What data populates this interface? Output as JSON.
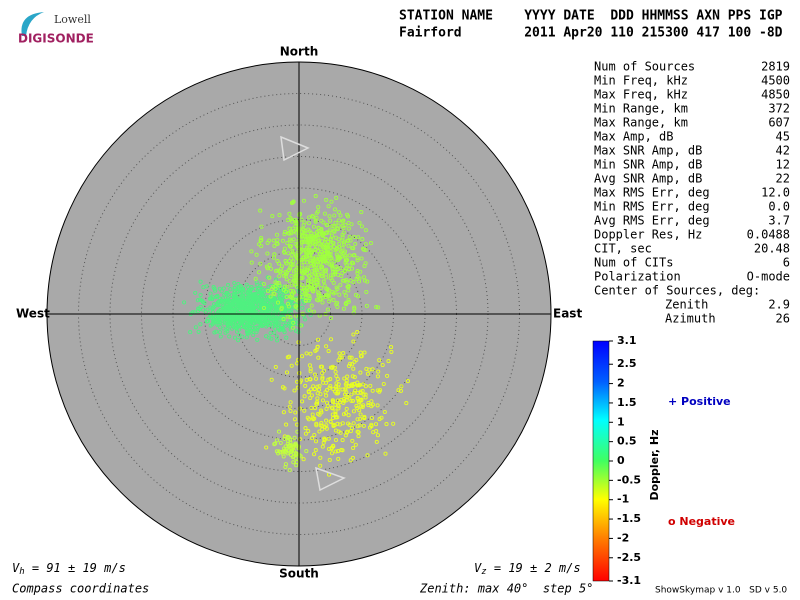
{
  "logo": {
    "top": "Lowell",
    "bottom": "DIGISONDE"
  },
  "header": {
    "line1": "STATION NAME    YYYY DATE  DDD HHMMSS AXN PPS IGP",
    "line2": "Fairford        2011 Apr20 110 215300 417 100 -8D"
  },
  "directions": {
    "north": "North",
    "south": "South",
    "east": "East",
    "west": "West"
  },
  "stats": {
    "rows": [
      [
        "Num of Sources",
        "2819"
      ],
      [
        "Min Freq, kHz",
        "4500"
      ],
      [
        "Max Freq, kHz",
        "4850"
      ],
      [
        "Min Range, km",
        "372"
      ],
      [
        "Max Range, km",
        "607"
      ],
      [
        "Max Amp, dB",
        "45"
      ],
      [
        "Max SNR Amp, dB",
        "42"
      ],
      [
        "Min SNR Amp, dB",
        "12"
      ],
      [
        "Avg SNR Amp, dB",
        "22"
      ],
      [
        "Max RMS Err, deg",
        "12.0"
      ],
      [
        "Min RMS Err, deg",
        "0.0"
      ],
      [
        "Avg RMS Err, deg",
        "3.7"
      ],
      [
        "Doppler Res, Hz",
        "0.0488"
      ],
      [
        "CIT, sec",
        "20.48"
      ],
      [
        "Num of CITs",
        "6"
      ],
      [
        "Polarization",
        "O-mode"
      ]
    ],
    "center_title": "Center of Sources, deg:",
    "center_rows": [
      [
        "Zenith",
        "2.9"
      ],
      [
        "Azimuth",
        "26"
      ]
    ]
  },
  "colorbar": {
    "title": "Doppler, Hz",
    "ticks": [
      3.1,
      2.5,
      2,
      1.5,
      1,
      0.5,
      0,
      -0.5,
      -1,
      -1.5,
      -2,
      -2.5,
      -3.1
    ]
  },
  "legend": {
    "positive": "+ Positive",
    "negative": "o Negative"
  },
  "footer": {
    "vh_symbol": "V",
    "vh_sub": "h",
    "vh_text": " = 91 ± 19 m/s",
    "vz_symbol": "V",
    "vz_sub": "z",
    "vz_text": " = 19 ± 2 m/s",
    "coords": "Compass coordinates",
    "zenith": "Zenith: max 40°  step 5°",
    "version": "ShowSkymap v 1.0   SD v 5.0"
  }
}
